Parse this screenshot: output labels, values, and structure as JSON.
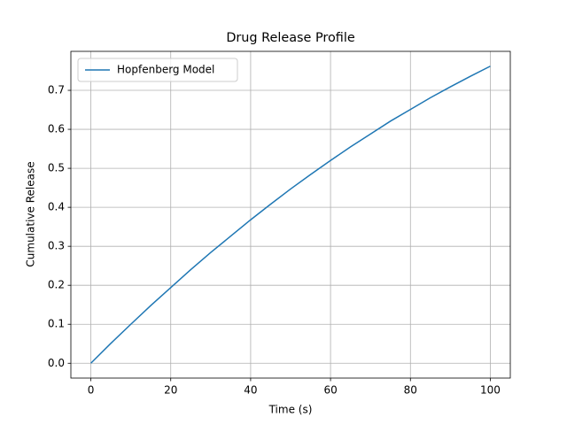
{
  "chart_data": {
    "type": "line",
    "title": "Drug Release Profile",
    "xlabel": "Time (s)",
    "ylabel": "Cumulative Release",
    "x": [
      0,
      5,
      10,
      15,
      20,
      25,
      30,
      35,
      40,
      45,
      50,
      55,
      60,
      65,
      70,
      75,
      80,
      85,
      90,
      95,
      100
    ],
    "series": [
      {
        "name": "Hopfenberg Model",
        "color": "#1f77b4",
        "values": [
          0,
          0.051,
          0.1,
          0.148,
          0.194,
          0.24,
          0.284,
          0.326,
          0.368,
          0.408,
          0.447,
          0.484,
          0.52,
          0.555,
          0.588,
          0.621,
          0.651,
          0.681,
          0.709,
          0.736,
          0.762
        ]
      }
    ],
    "xlim": [
      -5,
      105
    ],
    "ylim": [
      -0.038,
      0.8
    ],
    "xticks": [
      0,
      20,
      40,
      60,
      80,
      100
    ],
    "yticks": [
      {
        "value": 0,
        "label": "0.0"
      },
      0.1,
      0.2,
      0.3,
      0.4,
      0.5,
      0.6,
      0.7
    ],
    "grid": true,
    "legend": "upper-left"
  }
}
